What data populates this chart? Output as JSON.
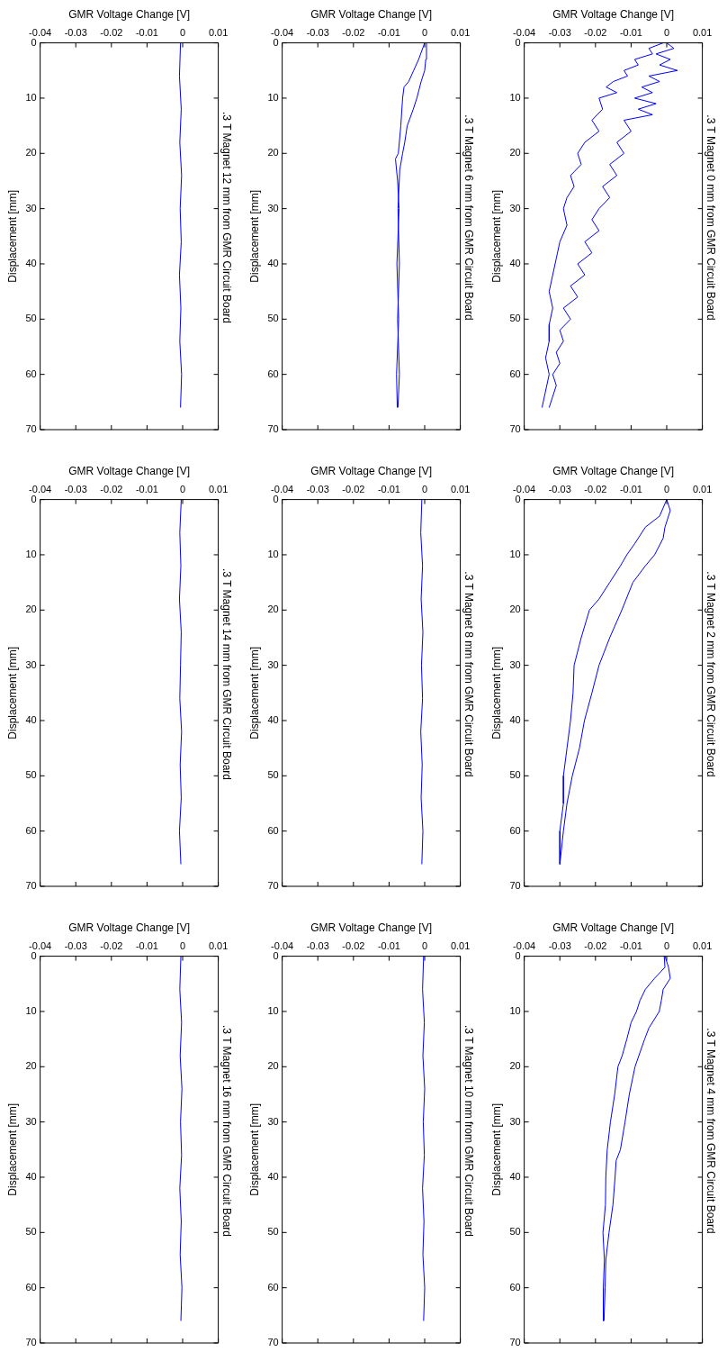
{
  "chart_data": [
    {
      "type": "line",
      "title": ".3 T Magnet 12 mm from GMR Circuit Board",
      "xlabel": "GMR Voltage Change [V]",
      "ylabel": "Displacement [mm]",
      "xlim": [
        -0.04,
        0.01
      ],
      "xticks": [
        -0.04,
        -0.03,
        -0.02,
        -0.01,
        0,
        0.01
      ],
      "ylim": [
        70,
        0
      ],
      "yticks": [
        0,
        10,
        20,
        30,
        40,
        50,
        60,
        70
      ],
      "series": [
        {
          "color": "#0000ff",
          "values": [
            0,
            6,
            12,
            18,
            24,
            30,
            36,
            42,
            48,
            54,
            60,
            66
          ],
          "x": [
            -0.0006,
            -0.0009,
            -0.0004,
            -0.0008,
            -0.0003,
            -0.0007,
            -0.0004,
            -0.0009,
            -0.0005,
            -0.0008,
            -0.0003,
            -0.0006
          ]
        }
      ]
    },
    {
      "type": "line",
      "title": ".3 T Magnet 6 mm from GMR Circuit Board",
      "xlabel": "GMR Voltage Change [V]",
      "ylabel": "Displacement [mm]",
      "xlim": [
        -0.04,
        0.01
      ],
      "xticks": [
        -0.04,
        -0.03,
        -0.02,
        -0.01,
        0,
        0.01
      ],
      "ylim": [
        70,
        0
      ],
      "yticks": [
        0,
        10,
        20,
        30,
        40,
        50,
        60,
        70
      ],
      "series": [
        {
          "color": "#0000ff",
          "values": [
            0,
            3,
            5,
            7,
            8,
            10,
            15,
            20,
            21,
            25,
            30,
            40,
            50,
            60,
            66
          ],
          "x": [
            0,
            -0.0017,
            -0.0031,
            -0.0045,
            -0.0058,
            -0.0062,
            -0.0067,
            -0.0074,
            -0.0082,
            -0.0076,
            -0.0072,
            -0.0078,
            -0.0073,
            -0.0079,
            -0.0077
          ]
        },
        {
          "color": "#0000ff",
          "values": [
            66,
            60,
            50,
            40,
            30,
            23,
            20,
            18,
            15,
            12,
            10,
            7,
            5,
            3,
            0
          ],
          "x": [
            -0.0075,
            -0.0071,
            -0.0076,
            -0.0071,
            -0.0075,
            -0.007,
            -0.0062,
            -0.0056,
            -0.0049,
            -0.0032,
            -0.0022,
            -0.001,
            0,
            0.0003,
            0.0005
          ]
        }
      ]
    },
    {
      "type": "line",
      "title": ".3 T Magnet 0 mm from GMR Circuit Board",
      "xlabel": "GMR Voltage Change [V]",
      "ylabel": "Displacement [mm]",
      "xlim": [
        -0.04,
        0.01
      ],
      "xticks": [
        -0.04,
        -0.03,
        -0.02,
        -0.01,
        0,
        0.01
      ],
      "ylim": [
        70,
        0
      ],
      "yticks": [
        0,
        10,
        20,
        30,
        40,
        50,
        60,
        70
      ],
      "series": [
        {
          "color": "#0000ff",
          "values": [
            0,
            1,
            2,
            3,
            4,
            5,
            6,
            7,
            8,
            9,
            10,
            12,
            14,
            16,
            18,
            20,
            22,
            24,
            26,
            28,
            30,
            33,
            36,
            39,
            42,
            45,
            48,
            51,
            54,
            57,
            60,
            63,
            66
          ],
          "x": [
            -0.001,
            -0.005,
            -0.004,
            -0.009,
            -0.008,
            -0.012,
            -0.011,
            -0.015,
            -0.017,
            -0.014,
            -0.019,
            -0.018,
            -0.021,
            -0.019,
            -0.023,
            -0.025,
            -0.024,
            -0.027,
            -0.026,
            -0.028,
            -0.029,
            -0.028,
            -0.03,
            -0.031,
            -0.032,
            -0.033,
            -0.032,
            -0.033,
            -0.033,
            -0.034,
            -0.033,
            -0.034,
            -0.035
          ]
        },
        {
          "color": "#0000ff",
          "values": [
            66,
            64,
            62,
            60,
            58,
            56,
            54,
            52,
            50,
            48,
            46,
            44,
            42,
            40,
            38,
            36,
            34,
            32,
            30,
            28,
            26,
            24,
            22,
            20,
            18,
            16,
            14,
            13,
            12,
            11,
            10,
            9,
            8,
            7,
            6,
            5,
            4,
            3,
            2,
            1,
            0
          ],
          "x": [
            -0.033,
            -0.032,
            -0.031,
            -0.032,
            -0.03,
            -0.031,
            -0.029,
            -0.03,
            -0.027,
            -0.029,
            -0.025,
            -0.027,
            -0.023,
            -0.025,
            -0.021,
            -0.023,
            -0.019,
            -0.021,
            -0.019,
            -0.016,
            -0.018,
            -0.014,
            -0.016,
            -0.012,
            -0.014,
            -0.01,
            -0.012,
            -0.004,
            -0.008,
            -0.003,
            -0.009,
            -0.004,
            -0.007,
            -0.002,
            -0.005,
            0.003,
            -0.002,
            0.001,
            -0.003,
            0.002,
            0
          ]
        }
      ]
    },
    {
      "type": "line",
      "title": ".3 T Magnet 14 mm from GMR Circuit Board",
      "xlabel": "GMR Voltage Change [V]",
      "ylabel": "Displacement [mm]",
      "xlim": [
        -0.04,
        0.01
      ],
      "xticks": [
        -0.04,
        -0.03,
        -0.02,
        -0.01,
        0,
        0.01
      ],
      "ylim": [
        70,
        0
      ],
      "yticks": [
        0,
        10,
        20,
        30,
        40,
        50,
        60,
        70
      ],
      "series": [
        {
          "color": "#0000ff",
          "values": [
            0,
            6,
            12,
            18,
            24,
            30,
            36,
            42,
            48,
            54,
            60,
            66
          ],
          "x": [
            -0.0004,
            -0.0008,
            -0.0005,
            -0.0009,
            -0.0004,
            -0.0006,
            -0.0008,
            -0.0003,
            -0.0007,
            -0.0004,
            -0.0009,
            -0.0005
          ]
        }
      ]
    },
    {
      "type": "line",
      "title": ".3 T Magnet 8 mm from GMR Circuit Board",
      "xlabel": "GMR Voltage Change [V]",
      "ylabel": "Displacement [mm]",
      "xlim": [
        -0.04,
        0.01
      ],
      "xticks": [
        -0.04,
        -0.03,
        -0.02,
        -0.01,
        0,
        0.01
      ],
      "ylim": [
        70,
        0
      ],
      "yticks": [
        0,
        10,
        20,
        30,
        40,
        50,
        60,
        70
      ],
      "series": [
        {
          "color": "#0000ff",
          "values": [
            0,
            6,
            12,
            18,
            24,
            30,
            36,
            42,
            48,
            54,
            60,
            66
          ],
          "x": [
            -0.0008,
            -0.0011,
            -0.0006,
            -0.001,
            -0.0005,
            -0.0009,
            -0.0006,
            -0.0011,
            -0.0007,
            -0.001,
            -0.0005,
            -0.0008
          ]
        }
      ]
    },
    {
      "type": "line",
      "title": ".3 T Magnet 2 mm from GMR Circuit Board",
      "xlabel": "GMR Voltage Change [V]",
      "ylabel": "Displacement [mm]",
      "xlim": [
        -0.04,
        0.01
      ],
      "xticks": [
        -0.04,
        -0.03,
        -0.02,
        -0.01,
        0,
        0.01
      ],
      "ylim": [
        70,
        0
      ],
      "yticks": [
        0,
        10,
        20,
        30,
        40,
        50,
        60,
        70
      ],
      "series": [
        {
          "color": "#0000ff",
          "values": [
            0,
            3,
            5,
            8,
            10,
            12,
            15,
            18,
            20,
            25,
            30,
            35,
            40,
            45,
            50,
            55,
            60,
            66
          ],
          "x": [
            0,
            -0.002,
            -0.006,
            -0.009,
            -0.0112,
            -0.013,
            -0.016,
            -0.019,
            -0.0217,
            -0.024,
            -0.026,
            -0.0263,
            -0.027,
            -0.028,
            -0.029,
            -0.029,
            -0.03,
            -0.03
          ]
        },
        {
          "color": "#0000ff",
          "values": [
            66,
            60,
            55,
            50,
            45,
            40,
            35,
            30,
            25,
            20,
            15,
            12,
            10,
            7,
            5,
            2,
            0
          ],
          "x": [
            -0.03,
            -0.029,
            -0.028,
            -0.0265,
            -0.0245,
            -0.0231,
            -0.021,
            -0.019,
            -0.016,
            -0.0126,
            -0.0095,
            -0.006,
            -0.0034,
            -0.001,
            -0.0005,
            0.001,
            0
          ]
        }
      ]
    },
    {
      "type": "line",
      "title": ".3 T Magnet 16 mm from GMR Circuit Board",
      "xlabel": "GMR Voltage Change [V]",
      "ylabel": "Displacement [mm]",
      "xlim": [
        -0.04,
        0.01
      ],
      "xticks": [
        -0.04,
        -0.03,
        -0.02,
        -0.01,
        0,
        0.01
      ],
      "ylim": [
        70,
        0
      ],
      "yticks": [
        0,
        10,
        20,
        30,
        40,
        50,
        60,
        70
      ],
      "series": [
        {
          "color": "#0000ff",
          "values": [
            0,
            6,
            12,
            18,
            24,
            30,
            36,
            42,
            48,
            54,
            60,
            66
          ],
          "x": [
            -0.0005,
            -0.0008,
            -0.0003,
            -0.0007,
            -0.0002,
            -0.0006,
            -0.0003,
            -0.0008,
            -0.0004,
            -0.0007,
            -0.0002,
            -0.0005
          ]
        }
      ]
    },
    {
      "type": "line",
      "title": ".3 T Magnet 10 mm from GMR Circuit Board",
      "xlabel": "GMR Voltage Change [V]",
      "ylabel": "Displacement [mm]",
      "xlim": [
        -0.04,
        0.01
      ],
      "xticks": [
        -0.04,
        -0.03,
        -0.02,
        -0.01,
        0,
        0.01
      ],
      "ylim": [
        70,
        0
      ],
      "yticks": [
        0,
        10,
        20,
        30,
        40,
        50,
        60,
        70
      ],
      "series": [
        {
          "color": "#0000ff",
          "values": [
            0,
            6,
            12,
            18,
            24,
            30,
            36,
            42,
            48,
            54,
            60,
            66
          ],
          "x": [
            -0.0003,
            -0.0006,
            -0.0001,
            -0.0005,
            0,
            -0.0004,
            -0.0001,
            -0.0006,
            -0.0002,
            -0.0005,
            0,
            -0.0003
          ]
        }
      ]
    },
    {
      "type": "line",
      "title": ".3 T Magnet 4 mm from GMR Circuit Board",
      "xlabel": "GMR Voltage Change [V]",
      "ylabel": "Displacement [mm]",
      "xlim": [
        -0.04,
        0.01
      ],
      "xticks": [
        -0.04,
        -0.03,
        -0.02,
        -0.01,
        0,
        0.01
      ],
      "ylim": [
        70,
        0
      ],
      "yticks": [
        0,
        10,
        20,
        30,
        40,
        50,
        60,
        70
      ],
      "series": [
        {
          "color": "#0000ff",
          "values": [
            0,
            2,
            4,
            6,
            8,
            10,
            12,
            15,
            18,
            20,
            25,
            30,
            35,
            40,
            45,
            50,
            55,
            60,
            66
          ],
          "x": [
            -0.0007,
            -0.0005,
            -0.0034,
            -0.006,
            -0.0075,
            -0.0085,
            -0.01,
            -0.0112,
            -0.0125,
            -0.0137,
            -0.0146,
            -0.0158,
            -0.0167,
            -0.0171,
            -0.0172,
            -0.0179,
            -0.0175,
            -0.0178,
            -0.0178
          ]
        },
        {
          "color": "#0000ff",
          "values": [
            66,
            60,
            55,
            50,
            45,
            40,
            37,
            35,
            30,
            25,
            20,
            15,
            13,
            10,
            8,
            6,
            4,
            2,
            0
          ],
          "x": [
            -0.0176,
            -0.0173,
            -0.0171,
            -0.0162,
            -0.0151,
            -0.0145,
            -0.0142,
            -0.013,
            -0.0117,
            -0.0105,
            -0.0089,
            -0.0062,
            -0.005,
            -0.0021,
            -0.0015,
            -0.001,
            0.001,
            0.0005,
            -0.0005
          ]
        }
      ]
    }
  ]
}
